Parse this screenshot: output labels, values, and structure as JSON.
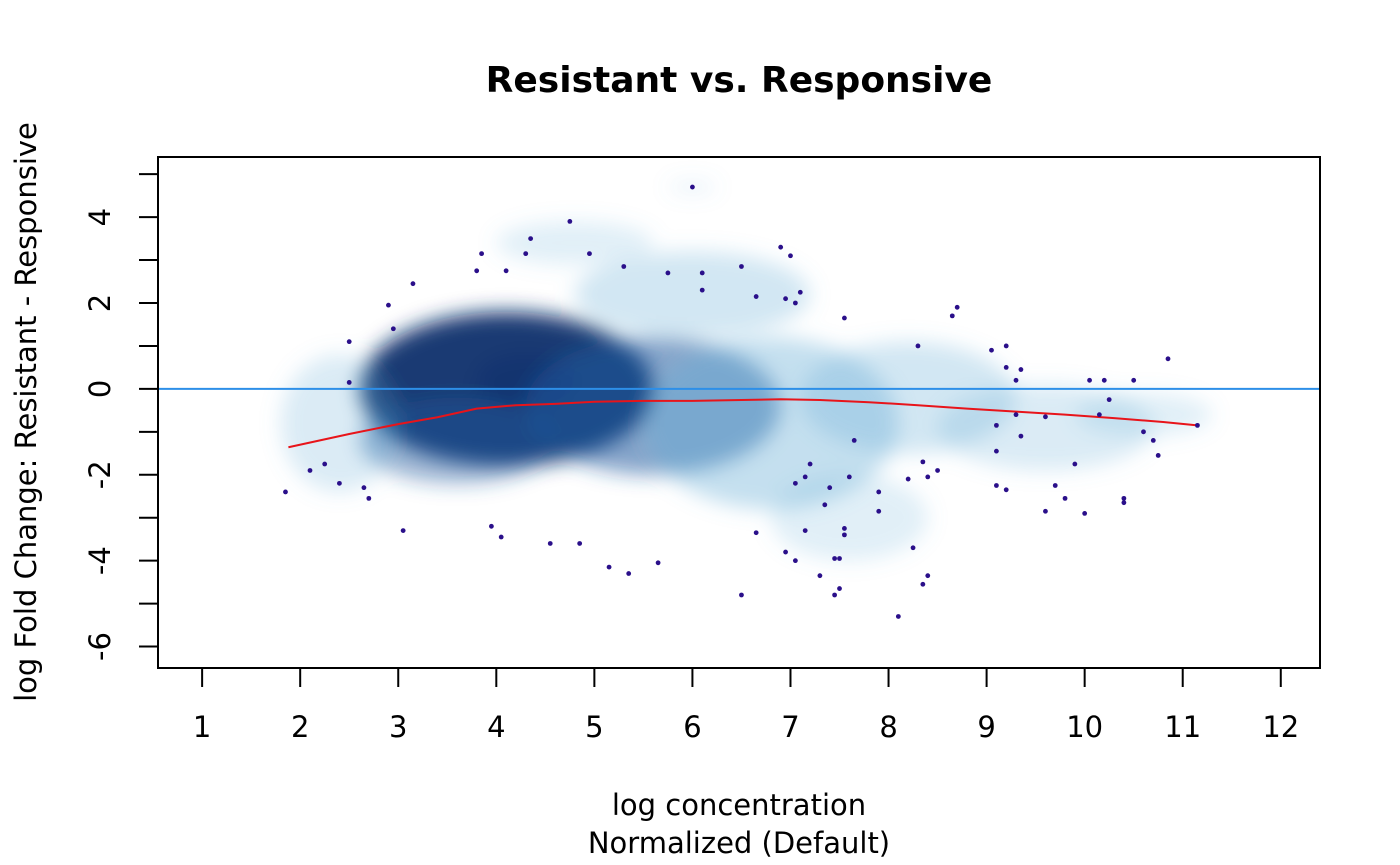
{
  "chart_data": {
    "type": "scatter",
    "title": "Resistant vs. Responsive",
    "xlabel": "log concentration",
    "xlabel_sub": "Normalized (Default)",
    "ylabel": "log Fold Change: Resistant - Responsive",
    "xlim": [
      0.55,
      12.4
    ],
    "ylim": [
      -6.5,
      5.4
    ],
    "x_ticks": [
      1,
      2,
      3,
      4,
      5,
      6,
      7,
      8,
      9,
      10,
      11,
      12
    ],
    "y_ticks_labeled": [
      -6,
      -4,
      -2,
      0,
      2,
      4
    ],
    "y_ticks_minor": [
      -5,
      -3,
      -1,
      1,
      3,
      5
    ],
    "grid": false,
    "colors": {
      "density": "#08306b",
      "density_light": "#6baed6",
      "points": "#2a0f8a",
      "zero_line": "#2d8fe8",
      "loess": "#e8141a",
      "frame": "#000000"
    },
    "reference_line": {
      "y": 0
    },
    "density_regions": [
      {
        "x": 4.1,
        "y": 0.0,
        "sx": 1.5,
        "sy": 1.8,
        "w": 0.95
      },
      {
        "x": 4.3,
        "y": 0.2,
        "sx": 0.5,
        "sy": 0.6,
        "w": 0.55
      },
      {
        "x": 3.6,
        "y": -1.2,
        "sx": 1.0,
        "sy": 1.0,
        "w": 0.45
      },
      {
        "x": 5.6,
        "y": -0.4,
        "sx": 1.3,
        "sy": 1.6,
        "w": 0.55
      },
      {
        "x": 6.8,
        "y": -0.8,
        "sx": 1.3,
        "sy": 2.0,
        "w": 0.4
      },
      {
        "x": 6.0,
        "y": 2.2,
        "sx": 1.2,
        "sy": 1.0,
        "w": 0.3
      },
      {
        "x": 8.2,
        "y": -0.2,
        "sx": 1.1,
        "sy": 1.3,
        "w": 0.3
      },
      {
        "x": 9.6,
        "y": -0.9,
        "sx": 1.1,
        "sy": 1.0,
        "w": 0.25
      },
      {
        "x": 10.6,
        "y": -0.6,
        "sx": 0.7,
        "sy": 0.5,
        "w": 0.2
      },
      {
        "x": 2.4,
        "y": -0.8,
        "sx": 0.6,
        "sy": 1.6,
        "w": 0.25
      },
      {
        "x": 7.6,
        "y": -3.0,
        "sx": 0.8,
        "sy": 1.0,
        "w": 0.2
      },
      {
        "x": 4.8,
        "y": 3.4,
        "sx": 0.8,
        "sy": 0.5,
        "w": 0.2
      },
      {
        "x": 6.0,
        "y": 4.7,
        "sx": 0.25,
        "sy": 0.15,
        "w": 0.15
      }
    ],
    "loess": {
      "x": [
        1.88,
        2.5,
        3.0,
        3.4,
        3.8,
        4.2,
        4.6,
        5.0,
        5.5,
        6.0,
        6.5,
        6.9,
        7.3,
        7.8,
        8.3,
        8.8,
        9.3,
        9.8,
        10.3,
        10.8,
        11.15
      ],
      "y": [
        -1.36,
        -1.05,
        -0.82,
        -0.66,
        -0.46,
        -0.38,
        -0.35,
        -0.3,
        -0.28,
        -0.28,
        -0.26,
        -0.24,
        -0.26,
        -0.31,
        -0.38,
        -0.46,
        -0.53,
        -0.6,
        -0.68,
        -0.77,
        -0.85
      ]
    },
    "points": [
      {
        "x": 1.85,
        "y": -2.4
      },
      {
        "x": 2.1,
        "y": -1.9
      },
      {
        "x": 2.25,
        "y": -1.75
      },
      {
        "x": 2.4,
        "y": -2.2
      },
      {
        "x": 2.5,
        "y": 1.1
      },
      {
        "x": 2.5,
        "y": 0.15
      },
      {
        "x": 2.65,
        "y": -2.3
      },
      {
        "x": 2.7,
        "y": -2.55
      },
      {
        "x": 2.9,
        "y": 1.95
      },
      {
        "x": 2.95,
        "y": 1.4
      },
      {
        "x": 3.05,
        "y": -3.3
      },
      {
        "x": 3.15,
        "y": 2.45
      },
      {
        "x": 3.8,
        "y": 2.75
      },
      {
        "x": 3.85,
        "y": 3.15
      },
      {
        "x": 3.95,
        "y": -3.2
      },
      {
        "x": 4.05,
        "y": -3.45
      },
      {
        "x": 4.1,
        "y": 2.75
      },
      {
        "x": 4.3,
        "y": 3.15
      },
      {
        "x": 4.35,
        "y": 3.5
      },
      {
        "x": 4.55,
        "y": -3.6
      },
      {
        "x": 4.75,
        "y": 3.9
      },
      {
        "x": 4.85,
        "y": -3.6
      },
      {
        "x": 4.95,
        "y": 3.15
      },
      {
        "x": 5.15,
        "y": -4.15
      },
      {
        "x": 5.3,
        "y": 2.85
      },
      {
        "x": 5.35,
        "y": -4.3
      },
      {
        "x": 5.65,
        "y": -4.05
      },
      {
        "x": 5.75,
        "y": 2.7
      },
      {
        "x": 6.0,
        "y": 4.7
      },
      {
        "x": 6.1,
        "y": 2.3
      },
      {
        "x": 6.1,
        "y": 2.7
      },
      {
        "x": 6.5,
        "y": 2.85
      },
      {
        "x": 6.5,
        "y": -4.8
      },
      {
        "x": 6.65,
        "y": 2.15
      },
      {
        "x": 6.65,
        "y": -3.35
      },
      {
        "x": 6.9,
        "y": 3.3
      },
      {
        "x": 6.95,
        "y": -3.8
      },
      {
        "x": 6.95,
        "y": 2.1
      },
      {
        "x": 7.0,
        "y": 3.1
      },
      {
        "x": 7.05,
        "y": 2.0
      },
      {
        "x": 7.05,
        "y": -2.2
      },
      {
        "x": 7.05,
        "y": -4.0
      },
      {
        "x": 7.1,
        "y": 2.25
      },
      {
        "x": 7.15,
        "y": -2.05
      },
      {
        "x": 7.15,
        "y": -3.3
      },
      {
        "x": 7.2,
        "y": -1.75
      },
      {
        "x": 7.3,
        "y": -4.35
      },
      {
        "x": 7.35,
        "y": -2.7
      },
      {
        "x": 7.4,
        "y": -2.3
      },
      {
        "x": 7.45,
        "y": -3.95
      },
      {
        "x": 7.45,
        "y": -4.8
      },
      {
        "x": 7.5,
        "y": -4.65
      },
      {
        "x": 7.5,
        "y": -3.95
      },
      {
        "x": 7.55,
        "y": -3.25
      },
      {
        "x": 7.55,
        "y": -3.4
      },
      {
        "x": 7.55,
        "y": 1.65
      },
      {
        "x": 7.6,
        "y": -2.05
      },
      {
        "x": 7.65,
        "y": -1.2
      },
      {
        "x": 7.9,
        "y": -2.4
      },
      {
        "x": 7.9,
        "y": -2.85
      },
      {
        "x": 8.1,
        "y": -5.3
      },
      {
        "x": 8.2,
        "y": -2.1
      },
      {
        "x": 8.25,
        "y": -3.7
      },
      {
        "x": 8.3,
        "y": 1.0
      },
      {
        "x": 8.35,
        "y": -1.7
      },
      {
        "x": 8.35,
        "y": -4.55
      },
      {
        "x": 8.4,
        "y": -4.35
      },
      {
        "x": 8.4,
        "y": -2.05
      },
      {
        "x": 8.5,
        "y": -1.9
      },
      {
        "x": 8.65,
        "y": 1.7
      },
      {
        "x": 8.7,
        "y": 1.9
      },
      {
        "x": 9.05,
        "y": 0.9
      },
      {
        "x": 9.1,
        "y": -1.45
      },
      {
        "x": 9.1,
        "y": -2.25
      },
      {
        "x": 9.1,
        "y": -0.85
      },
      {
        "x": 9.2,
        "y": 1.0
      },
      {
        "x": 9.2,
        "y": 0.5
      },
      {
        "x": 9.2,
        "y": -2.35
      },
      {
        "x": 9.3,
        "y": 0.2
      },
      {
        "x": 9.3,
        "y": -0.6
      },
      {
        "x": 9.35,
        "y": 0.45
      },
      {
        "x": 9.35,
        "y": -1.1
      },
      {
        "x": 9.6,
        "y": -0.65
      },
      {
        "x": 9.6,
        "y": -2.85
      },
      {
        "x": 9.7,
        "y": -2.25
      },
      {
        "x": 9.8,
        "y": -2.55
      },
      {
        "x": 9.9,
        "y": -1.75
      },
      {
        "x": 10.0,
        "y": -2.9
      },
      {
        "x": 10.05,
        "y": 0.2
      },
      {
        "x": 10.15,
        "y": -0.6
      },
      {
        "x": 10.2,
        "y": 0.2
      },
      {
        "x": 10.25,
        "y": -0.25
      },
      {
        "x": 10.4,
        "y": -2.55
      },
      {
        "x": 10.4,
        "y": -2.65
      },
      {
        "x": 10.5,
        "y": 0.2
      },
      {
        "x": 10.6,
        "y": -1.0
      },
      {
        "x": 10.7,
        "y": -1.2
      },
      {
        "x": 10.75,
        "y": -1.55
      },
      {
        "x": 10.85,
        "y": 0.7
      },
      {
        "x": 11.15,
        "y": -0.85
      }
    ]
  }
}
